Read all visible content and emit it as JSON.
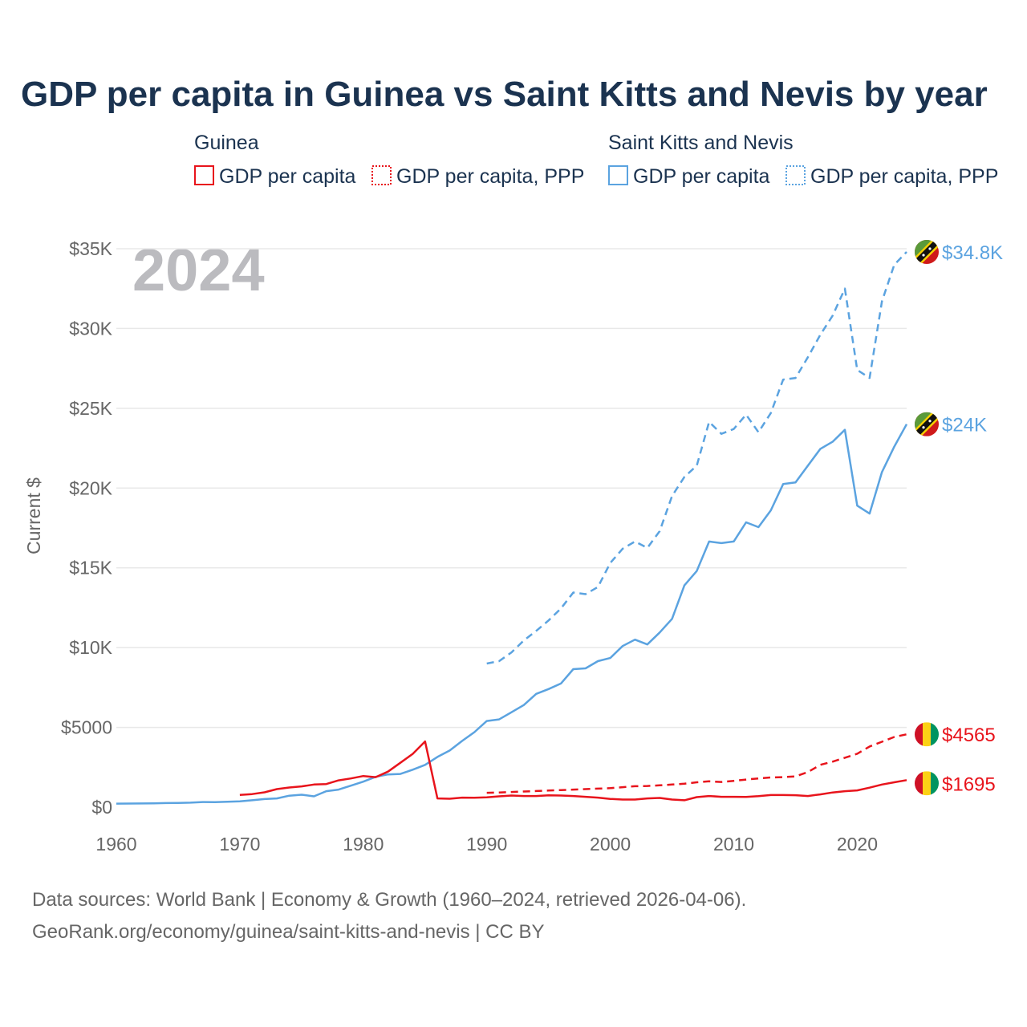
{
  "colors": {
    "guinea": "#e8141c",
    "skn": "#5ba3e0",
    "title": "#1b3350",
    "axis": "#666666",
    "grid": "#e8e8e8",
    "year": "#bbbbbf"
  },
  "legend": {
    "guinea": {
      "group": "Guinea",
      "gdp": "GDP per capita",
      "ppp": "GDP per capita, PPP"
    },
    "skn": {
      "group": "Saint Kitts and Nevis",
      "gdp": "GDP per capita",
      "ppp": "GDP per capita, PPP"
    }
  },
  "footer": {
    "line1": "Data sources: World Bank | Economy & Growth (1960–2024, retrieved 2026-04-06).",
    "line2": "GeoRank.org/economy/guinea/saint-kitts-and-nevis | CC BY"
  },
  "chart_data": {
    "type": "line",
    "title": "GDP per capita in Guinea vs Saint Kitts and Nevis by year",
    "ylabel": "Current $",
    "xlabel": "",
    "year_label": "2024",
    "xlim": [
      1960,
      2024
    ],
    "ylim": [
      0,
      35000
    ],
    "x_ticks": [
      1960,
      1970,
      1980,
      1990,
      2000,
      2010,
      2020
    ],
    "x_tick_labels": [
      "1960",
      "1970",
      "1980",
      "1990",
      "2000",
      "2010",
      "2020"
    ],
    "y_ticks": [
      0,
      5000,
      10000,
      15000,
      20000,
      25000,
      30000,
      35000
    ],
    "y_tick_labels": [
      "$0",
      "$5000",
      "$10K",
      "$15K",
      "$20K",
      "$25K",
      "$30K",
      "$35K"
    ],
    "grid": true,
    "end_labels": {
      "skn_ppp": "$34.8K",
      "skn_gdp": "$24K",
      "guinea_ppp": "$4565",
      "guinea_gdp": "$1695"
    },
    "series": [
      {
        "key": "skn_ppp",
        "name": "Saint Kitts and Nevis GDP per capita, PPP",
        "color": "#5ba3e0",
        "dash": "dashed",
        "x": [
          1990,
          1991,
          1992,
          1993,
          1994,
          1995,
          1996,
          1997,
          1998,
          1999,
          2000,
          2001,
          2002,
          2003,
          2004,
          2005,
          2006,
          2007,
          2008,
          2009,
          2010,
          2011,
          2012,
          2013,
          2014,
          2015,
          2016,
          2017,
          2018,
          2019,
          2020,
          2021,
          2022,
          2023,
          2024
        ],
        "values": [
          9000,
          9150,
          9700,
          10450,
          11050,
          11700,
          12450,
          13450,
          13350,
          13800,
          15300,
          16200,
          16650,
          16250,
          17300,
          19500,
          20700,
          21400,
          24150,
          23400,
          23700,
          24600,
          23500,
          24700,
          26800,
          26900,
          28200,
          29600,
          30800,
          32500,
          27400,
          26900,
          31700,
          34000,
          34800
        ]
      },
      {
        "key": "skn_gdp",
        "name": "Saint Kitts and Nevis GDP per capita",
        "color": "#5ba3e0",
        "dash": "solid",
        "x": [
          1960,
          1961,
          1962,
          1963,
          1964,
          1965,
          1966,
          1967,
          1968,
          1969,
          1970,
          1971,
          1972,
          1973,
          1974,
          1975,
          1976,
          1977,
          1978,
          1979,
          1980,
          1981,
          1982,
          1983,
          1984,
          1985,
          1986,
          1987,
          1988,
          1989,
          1990,
          1991,
          1992,
          1993,
          1994,
          1995,
          1996,
          1997,
          1998,
          1999,
          2000,
          2001,
          2002,
          2003,
          2004,
          2005,
          2006,
          2007,
          2008,
          2009,
          2010,
          2011,
          2012,
          2013,
          2014,
          2015,
          2016,
          2017,
          2018,
          2019,
          2020,
          2021,
          2022,
          2023,
          2024
        ],
        "values": [
          220,
          225,
          230,
          240,
          255,
          265,
          280,
          320,
          310,
          340,
          360,
          430,
          510,
          550,
          720,
          780,
          680,
          1000,
          1100,
          1350,
          1600,
          1900,
          2050,
          2080,
          2350,
          2650,
          3150,
          3550,
          4150,
          4700,
          5400,
          5500,
          5950,
          6400,
          7100,
          7400,
          7750,
          8650,
          8700,
          9150,
          9350,
          10100,
          10500,
          10200,
          10950,
          11800,
          13900,
          14800,
          16650,
          16550,
          16650,
          17850,
          17550,
          18600,
          20250,
          20350,
          21400,
          22450,
          22900,
          23650,
          18900,
          18400,
          21000,
          22600,
          24000
        ]
      },
      {
        "key": "guinea_ppp",
        "name": "Guinea GDP per capita, PPP",
        "color": "#e8141c",
        "dash": "dashed",
        "x": [
          1990,
          1991,
          1992,
          1993,
          1994,
          1995,
          1996,
          1997,
          1998,
          1999,
          2000,
          2001,
          2002,
          2003,
          2004,
          2005,
          2006,
          2007,
          2008,
          2009,
          2010,
          2011,
          2012,
          2013,
          2014,
          2015,
          2016,
          2017,
          2018,
          2019,
          2020,
          2021,
          2022,
          2023,
          2024
        ],
        "values": [
          900,
          920,
          950,
          980,
          1010,
          1040,
          1070,
          1100,
          1130,
          1160,
          1190,
          1250,
          1310,
          1330,
          1370,
          1420,
          1470,
          1560,
          1620,
          1580,
          1650,
          1730,
          1800,
          1860,
          1880,
          1930,
          2200,
          2650,
          2850,
          3100,
          3350,
          3800,
          4100,
          4400,
          4565
        ]
      },
      {
        "key": "guinea_gdp",
        "name": "Guinea GDP per capita",
        "color": "#e8141c",
        "dash": "solid",
        "x": [
          1970,
          1971,
          1972,
          1973,
          1974,
          1975,
          1976,
          1977,
          1978,
          1979,
          1980,
          1981,
          1982,
          1983,
          1984,
          1985,
          1986,
          1987,
          1988,
          1989,
          1990,
          1991,
          1992,
          1993,
          1994,
          1995,
          1996,
          1997,
          1998,
          1999,
          2000,
          2001,
          2002,
          2003,
          2004,
          2005,
          2006,
          2007,
          2008,
          2009,
          2010,
          2011,
          2012,
          2013,
          2014,
          2015,
          2016,
          2017,
          2018,
          2019,
          2020,
          2021,
          2022,
          2023,
          2024
        ],
        "values": [
          770,
          820,
          930,
          1130,
          1230,
          1300,
          1420,
          1450,
          1680,
          1800,
          1950,
          1880,
          2230,
          2780,
          3340,
          4120,
          550,
          530,
          600,
          590,
          620,
          680,
          730,
          700,
          700,
          740,
          730,
          700,
          650,
          600,
          520,
          480,
          480,
          550,
          580,
          480,
          430,
          630,
          700,
          650,
          650,
          640,
          690,
          760,
          760,
          750,
          700,
          800,
          920,
          1000,
          1050,
          1220,
          1420,
          1560,
          1695
        ]
      }
    ]
  }
}
